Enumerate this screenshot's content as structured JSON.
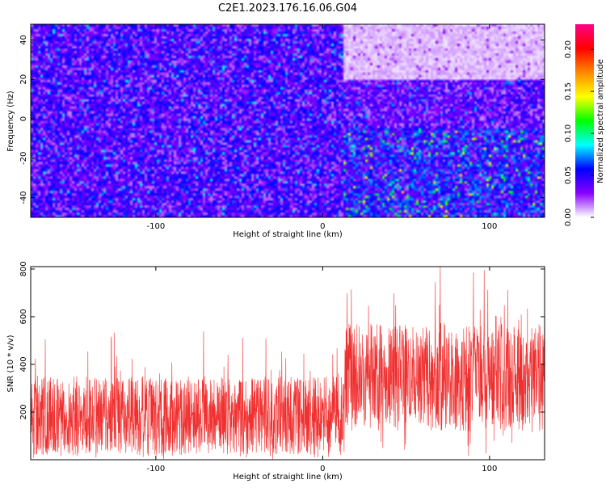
{
  "title": "C2E1.2023.176.16.06.G04",
  "chart_data": [
    {
      "type": "heatmap",
      "xlabel": "Height of straight line (km)",
      "ylabel": "Frequency (Hz)",
      "xlim": [
        -175,
        133
      ],
      "ylim": [
        -50,
        48
      ],
      "x_ticks": [
        -100,
        0,
        100
      ],
      "x_tick_labels": [
        "-100",
        "0",
        "100"
      ],
      "y_ticks": [
        -40,
        -20,
        0,
        20,
        40
      ],
      "y_tick_labels": [
        "-40",
        "-20",
        "0",
        "20",
        "40"
      ],
      "colorbar": {
        "label": "Normalized spectral amplitude",
        "range": [
          0,
          0.23
        ],
        "ticks": [
          0,
          0.05,
          0.1,
          0.15,
          0.2
        ],
        "tick_labels": [
          "0.00",
          "0.05",
          "0.10",
          "0.15",
          "0.20"
        ],
        "colormap": [
          "#ffffff",
          "#8800ff",
          "#0000ff",
          "#00ffff",
          "#00ff00",
          "#ffff00",
          "#ff8800",
          "#ff0000",
          "#ff0088"
        ]
      },
      "regions": [
        {
          "x_range": [
            -175,
            13
          ],
          "y_range": [
            -50,
            48
          ],
          "mean_amplitude": 0.04,
          "max_amplitude": 0.09
        },
        {
          "x_range": [
            13,
            133
          ],
          "y_range": [
            -50,
            -5
          ],
          "mean_amplitude": 0.05,
          "max_amplitude": 0.15
        },
        {
          "x_range": [
            13,
            133
          ],
          "y_range": [
            -5,
            20
          ],
          "mean_amplitude": 0.035,
          "max_amplitude": 0.08
        },
        {
          "x_range": [
            13,
            133
          ],
          "y_range": [
            20,
            48
          ],
          "mean_amplitude": 0.008,
          "max_amplitude": 0.03
        }
      ]
    },
    {
      "type": "line",
      "xlabel": "Height of straight line (km)",
      "ylabel": "SNR (10 * v/v)",
      "xlim": [
        -175,
        133
      ],
      "ylim": [
        0,
        810
      ],
      "x_ticks": [
        -100,
        0,
        100
      ],
      "x_tick_labels": [
        "-100",
        "0",
        "100"
      ],
      "y_ticks": [
        200,
        400,
        600,
        800
      ],
      "y_tick_labels": [
        "200",
        "400",
        "600",
        "800"
      ],
      "series_color": "#f03030",
      "segments": [
        {
          "x_range": [
            -175,
            13
          ],
          "low": 20,
          "high": 350,
          "peak": 540
        },
        {
          "x_range": [
            13,
            133
          ],
          "low": 120,
          "high": 570,
          "peak": 810
        }
      ]
    }
  ]
}
